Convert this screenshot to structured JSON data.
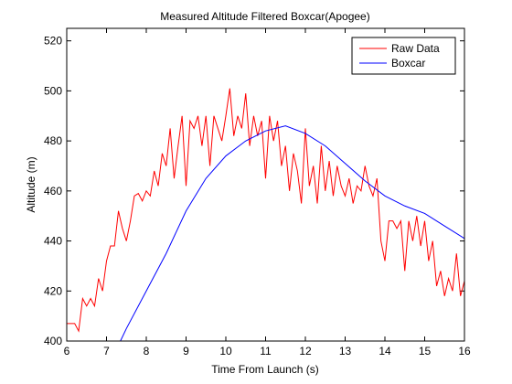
{
  "chart_data": {
    "type": "line",
    "title": "Measured Altitude Filtered Boxcar(Apogee)",
    "xlabel": "Time From Launch (s)",
    "ylabel": "Altitude (m)",
    "xlim": [
      6,
      16
    ],
    "ylim": [
      400,
      525
    ],
    "xticks": [
      6,
      7,
      8,
      9,
      10,
      11,
      12,
      13,
      14,
      15,
      16
    ],
    "yticks": [
      400,
      420,
      440,
      460,
      480,
      500,
      520
    ],
    "legend": "northeast",
    "series": [
      {
        "name": "Raw Data",
        "color": "#ff0000",
        "x": [
          6.0,
          6.1,
          6.2,
          6.3,
          6.4,
          6.5,
          6.6,
          6.7,
          6.8,
          6.9,
          7.0,
          7.1,
          7.2,
          7.3,
          7.4,
          7.5,
          7.6,
          7.7,
          7.8,
          7.9,
          8.0,
          8.1,
          8.2,
          8.3,
          8.4,
          8.5,
          8.6,
          8.7,
          8.8,
          8.9,
          9.0,
          9.1,
          9.2,
          9.3,
          9.4,
          9.5,
          9.6,
          9.7,
          9.8,
          9.9,
          10.0,
          10.1,
          10.2,
          10.3,
          10.4,
          10.5,
          10.6,
          10.7,
          10.8,
          10.9,
          11.0,
          11.1,
          11.2,
          11.3,
          11.4,
          11.5,
          11.6,
          11.7,
          11.8,
          11.9,
          12.0,
          12.1,
          12.2,
          12.3,
          12.4,
          12.5,
          12.6,
          12.7,
          12.8,
          12.9,
          13.0,
          13.1,
          13.2,
          13.3,
          13.4,
          13.5,
          13.6,
          13.7,
          13.8,
          13.9,
          14.0,
          14.1,
          14.2,
          14.3,
          14.4,
          14.5,
          14.6,
          14.7,
          14.8,
          14.9,
          15.0,
          15.1,
          15.2,
          15.3,
          15.4,
          15.5,
          15.6,
          15.7,
          15.8,
          15.9,
          16.0
        ],
        "values": [
          407,
          407,
          407,
          404,
          417,
          414,
          417,
          414,
          425,
          420,
          432,
          438,
          438,
          452,
          445,
          440,
          448,
          458,
          459,
          456,
          460,
          458,
          468,
          462,
          475,
          470,
          485,
          465,
          478,
          490,
          462,
          488,
          485,
          490,
          478,
          490,
          470,
          490,
          485,
          480,
          490,
          501,
          482,
          490,
          485,
          499,
          478,
          490,
          482,
          488,
          465,
          490,
          480,
          488,
          470,
          478,
          460,
          475,
          468,
          455,
          485,
          462,
          470,
          455,
          478,
          460,
          472,
          458,
          470,
          462,
          458,
          465,
          455,
          462,
          460,
          470,
          462,
          458,
          465,
          440,
          432,
          448,
          448,
          445,
          448,
          428,
          448,
          440,
          450,
          438,
          448,
          432,
          440,
          422,
          428,
          418,
          425,
          420,
          435,
          418,
          424
        ]
      },
      {
        "name": "Boxcar",
        "color": "#0000ff",
        "x": [
          7.35,
          7.5,
          8,
          8.5,
          9,
          9.5,
          10,
          10.5,
          11,
          11.5,
          12,
          12.5,
          13,
          13.5,
          14,
          14.5,
          15,
          15.5,
          16
        ],
        "values": [
          400,
          405,
          420,
          435,
          452,
          465,
          474,
          480,
          484,
          486,
          483,
          478,
          471,
          464,
          458,
          454,
          451,
          446,
          441
        ]
      }
    ]
  }
}
